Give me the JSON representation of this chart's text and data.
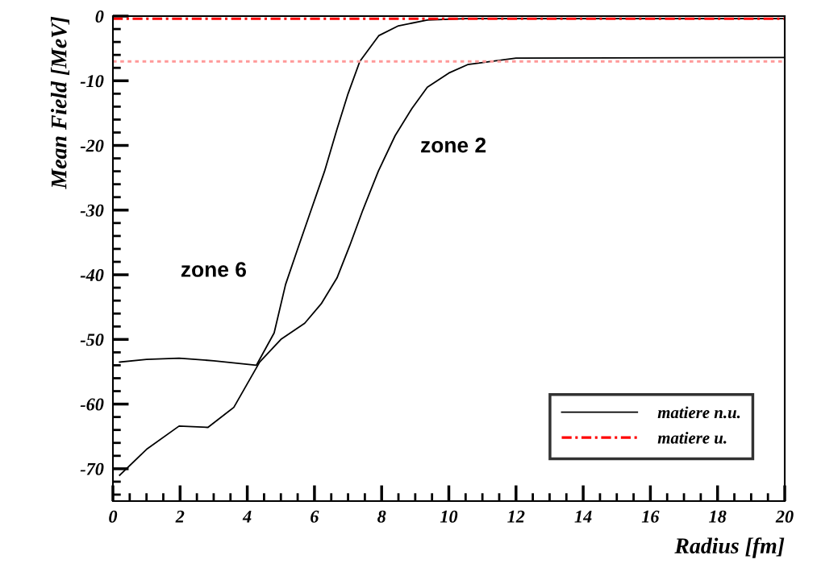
{
  "chart_data": {
    "type": "line",
    "xlabel": "Radius [fm]",
    "ylabel": "Mean Field [MeV]",
    "xlim": [
      0,
      20
    ],
    "ylim": [
      -75,
      0
    ],
    "xticks": [
      0,
      2,
      4,
      6,
      8,
      10,
      12,
      14,
      16,
      18,
      20
    ],
    "yticks": [
      -70,
      -60,
      -50,
      -40,
      -30,
      -20,
      -10,
      0
    ],
    "grid": false,
    "legend": "bottom right",
    "marker": "none",
    "series": [
      {
        "name": "matiere n.u.",
        "color": "#000000",
        "line_style": "solid",
        "x": [
          0.2,
          1.0,
          1.97,
          3.0,
          4.27,
          4.8,
          5.14,
          5.5,
          5.9,
          6.3,
          6.67,
          7.0,
          7.35,
          7.92,
          8.5,
          9.36,
          10.5,
          12,
          20
        ],
        "values": [
          -53.5,
          -53.1,
          -52.9,
          -53.3,
          -54,
          -49,
          -41.5,
          -36,
          -30,
          -24,
          -17.5,
          -12,
          -7,
          -3,
          -1.5,
          -0.6,
          -0.4,
          -0.4,
          -0.4
        ]
      },
      {
        "color": "#000000",
        "line_style": "solid",
        "x": [
          0.2,
          1.0,
          1.97,
          2.83,
          3.6,
          4.37,
          5.0,
          5.71,
          6.2,
          6.67,
          7.05,
          7.44,
          7.9,
          8.4,
          8.9,
          9.36,
          10.0,
          10.56,
          12.0,
          20
        ],
        "values": [
          -71,
          -67,
          -63.4,
          -63.6,
          -60.5,
          -53.5,
          -50,
          -47.5,
          -44.5,
          -40.5,
          -35.5,
          -30,
          -24,
          -18.5,
          -14.3,
          -11,
          -8.8,
          -7.5,
          -6.5,
          -6.4
        ]
      },
      {
        "name": "matiere u.",
        "color": "#ff0000",
        "line_style": "dashed",
        "x": [
          0,
          20
        ],
        "values": [
          -0.4,
          -0.4
        ]
      },
      {
        "color": "#ff9999",
        "line_style": "dotted",
        "x": [
          0,
          20
        ],
        "values": [
          -7,
          -7
        ]
      }
    ],
    "annotations": [
      {
        "text": "zone 6",
        "x": 5.5,
        "y": -36
      },
      {
        "text": "zone 2",
        "x": 8.4,
        "y": -18.5
      }
    ]
  }
}
